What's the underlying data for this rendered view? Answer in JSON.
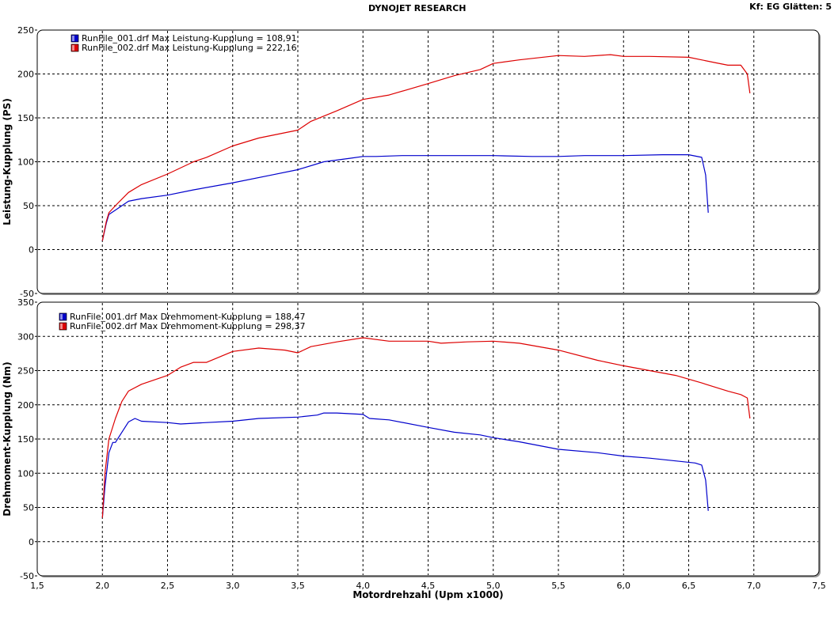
{
  "header": {
    "title": "DYNOJET RESEARCH",
    "info": "Kf: EG  Glätten: 5"
  },
  "colors": {
    "run1": "#0000cc",
    "run2": "#dd0000",
    "grid": "#000000",
    "frame": "#000000"
  },
  "chart_data": [
    {
      "type": "line",
      "ylabel": "Leistung-Kupplung (PS)",
      "xlabel": "",
      "xlim": [
        1.5,
        7.5
      ],
      "ylim": [
        -50,
        250
      ],
      "xticks": [
        2.0,
        2.5,
        3.0,
        3.5,
        4.0,
        4.5,
        5.0,
        5.5,
        6.0,
        6.5,
        7.0
      ],
      "yticks": [
        -50,
        0,
        50,
        100,
        150,
        200,
        250
      ],
      "ytick_labels": [
        "-50",
        "0",
        "50",
        "100",
        "150",
        "200",
        "250"
      ],
      "grid": true,
      "legend": "top-left",
      "legend_entries": [
        "RunFile_001.drf Max Leistung-Kupplung = 108,91",
        "RunFile_002.drf Max Leistung-Kupplung = 222,16"
      ],
      "series": [
        {
          "name": "RunFile_001.drf",
          "color": "#0000cc",
          "x": [
            2.0,
            2.03,
            2.05,
            2.1,
            2.2,
            2.3,
            2.5,
            2.7,
            3.0,
            3.3,
            3.5,
            3.7,
            3.9,
            4.0,
            4.1,
            4.3,
            4.5,
            4.8,
            5.0,
            5.3,
            5.5,
            5.7,
            6.0,
            6.3,
            6.5,
            6.6,
            6.63,
            6.65
          ],
          "y": [
            10,
            30,
            40,
            45,
            55,
            58,
            62,
            68,
            76,
            85,
            91,
            100,
            104,
            106,
            106,
            107,
            107,
            107,
            107,
            106,
            106,
            107,
            107,
            108,
            108,
            105,
            85,
            42
          ]
        },
        {
          "name": "RunFile_002.drf",
          "color": "#dd0000",
          "x": [
            2.0,
            2.03,
            2.05,
            2.1,
            2.2,
            2.3,
            2.5,
            2.7,
            2.8,
            3.0,
            3.2,
            3.5,
            3.6,
            3.8,
            4.0,
            4.2,
            4.5,
            4.7,
            4.9,
            5.0,
            5.2,
            5.5,
            5.7,
            5.9,
            6.0,
            6.2,
            6.5,
            6.7,
            6.8,
            6.9,
            6.95,
            6.97
          ],
          "y": [
            10,
            32,
            42,
            50,
            65,
            74,
            86,
            100,
            105,
            118,
            127,
            136,
            146,
            158,
            171,
            176,
            189,
            198,
            205,
            212,
            216,
            221,
            220,
            222,
            220,
            220,
            219,
            213,
            210,
            210,
            200,
            178
          ]
        }
      ]
    },
    {
      "type": "line",
      "ylabel": "Drehmoment-Kupplung (Nm)",
      "xlabel": "Motordrehzahl (Upm x1000)",
      "xlim": [
        1.5,
        7.5
      ],
      "ylim": [
        -50,
        350
      ],
      "xticks": [
        1.5,
        2.0,
        2.5,
        3.0,
        3.5,
        4.0,
        4.5,
        5.0,
        5.5,
        6.0,
        6.5,
        7.0,
        7.5
      ],
      "xtick_labels": [
        "1,5",
        "2,0",
        "2,5",
        "3,0",
        "3,5",
        "4,0",
        "4,5",
        "5,0",
        "5,5",
        "6,0",
        "6,5",
        "7,0",
        "7,5"
      ],
      "yticks": [
        -50,
        0,
        50,
        100,
        150,
        200,
        250,
        300,
        350
      ],
      "ytick_labels": [
        "-50",
        "0",
        "50",
        "100",
        "150",
        "200",
        "250",
        "300",
        "350"
      ],
      "grid": true,
      "legend": "top-left",
      "legend_entries": [
        "RunFile_001.drf Max Drehmoment-Kupplung = 188,47",
        "RunFile_002.drf Max Drehmoment-Kupplung = 298,37"
      ],
      "series": [
        {
          "name": "RunFile_001.drf",
          "color": "#0000cc",
          "x": [
            2.0,
            2.02,
            2.05,
            2.08,
            2.1,
            2.15,
            2.2,
            2.25,
            2.3,
            2.5,
            2.6,
            2.8,
            3.0,
            3.2,
            3.5,
            3.65,
            3.7,
            3.8,
            4.0,
            4.05,
            4.2,
            4.5,
            4.7,
            4.9,
            5.0,
            5.2,
            5.5,
            5.8,
            6.0,
            6.2,
            6.4,
            6.55,
            6.6,
            6.63,
            6.65
          ],
          "y": [
            35,
            80,
            130,
            145,
            145,
            160,
            175,
            180,
            176,
            174,
            172,
            174,
            176,
            180,
            182,
            185,
            188,
            188,
            186,
            180,
            178,
            167,
            160,
            156,
            152,
            146,
            135,
            130,
            125,
            122,
            118,
            115,
            112,
            90,
            45
          ]
        },
        {
          "name": "RunFile_002.drf",
          "color": "#dd0000",
          "x": [
            2.0,
            2.02,
            2.05,
            2.1,
            2.15,
            2.2,
            2.3,
            2.5,
            2.6,
            2.7,
            2.8,
            3.0,
            3.2,
            3.4,
            3.5,
            3.6,
            3.8,
            4.0,
            4.2,
            4.5,
            4.6,
            4.8,
            5.0,
            5.2,
            5.5,
            5.8,
            6.0,
            6.2,
            6.4,
            6.6,
            6.8,
            6.9,
            6.95,
            6.97
          ],
          "y": [
            35,
            100,
            150,
            180,
            205,
            220,
            230,
            243,
            255,
            262,
            262,
            278,
            283,
            280,
            276,
            285,
            292,
            298,
            293,
            293,
            290,
            292,
            293,
            290,
            280,
            265,
            257,
            250,
            243,
            232,
            220,
            215,
            210,
            180
          ]
        }
      ]
    }
  ]
}
